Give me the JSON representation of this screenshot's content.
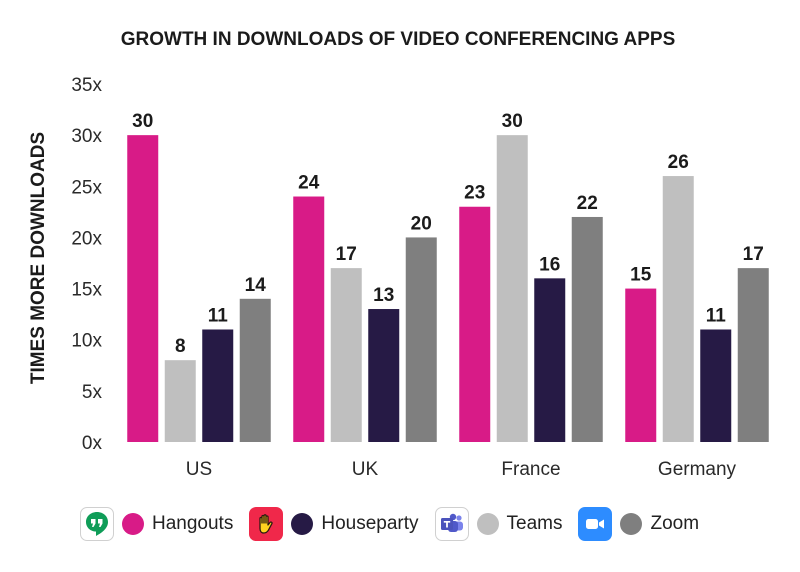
{
  "chart_data": {
    "type": "bar",
    "title": "GROWTH IN DOWNLOADS OF VIDEO CONFERENCING APPS",
    "xlabel": "",
    "ylabel": "TIMES MORE DOWNLOADS",
    "ylim": [
      0,
      35
    ],
    "yticks": [
      0,
      5,
      10,
      15,
      20,
      25,
      30,
      35
    ],
    "ytick_suffix": "x",
    "grid": false,
    "legend_position": "bottom",
    "categories": [
      "US",
      "UK",
      "France",
      "Germany"
    ],
    "series": [
      {
        "name": "Hangouts",
        "color": "#d81b87",
        "values": [
          30,
          24,
          23,
          15
        ]
      },
      {
        "name": "Teams",
        "color": "#bfbfbf",
        "values": [
          8,
          17,
          30,
          26
        ]
      },
      {
        "name": "Houseparty",
        "color": "#261a45",
        "values": [
          11,
          13,
          16,
          11
        ]
      },
      {
        "name": "Zoom",
        "color": "#7f7f7f",
        "values": [
          14,
          20,
          22,
          17
        ]
      }
    ]
  },
  "legend": [
    {
      "label": "Hangouts",
      "series": "Hangouts",
      "icon": "google-hangouts-icon"
    },
    {
      "label": "Houseparty",
      "series": "Houseparty",
      "icon": "houseparty-icon"
    },
    {
      "label": "Teams",
      "series": "Teams",
      "icon": "microsoft-teams-icon"
    },
    {
      "label": "Zoom",
      "series": "Zoom",
      "icon": "zoom-icon"
    }
  ]
}
